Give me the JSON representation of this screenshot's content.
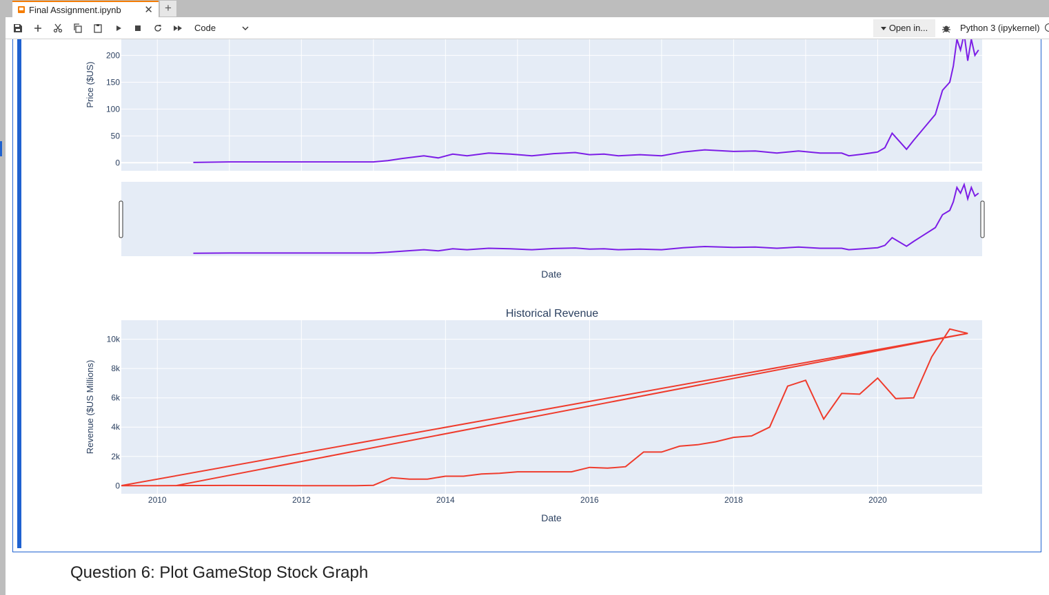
{
  "tab": {
    "title": "Final Assignment.ipynb",
    "close_glyph": "✕",
    "new_glyph": "+"
  },
  "toolbar": {
    "icons": [
      "save-icon",
      "add-cell-icon",
      "cut-icon",
      "copy-icon",
      "paste-icon",
      "run-icon",
      "stop-icon",
      "restart-icon",
      "run-all-icon"
    ],
    "cell_type": "Code",
    "open_in": "Open in...",
    "kernel": "Python 3 (ipykernel)"
  },
  "chart_price": {
    "ylabel": "Price ($US)",
    "yticks": [
      "0",
      "50",
      "100",
      "150",
      "200"
    ],
    "xlabel": "Date"
  },
  "chart_revenue": {
    "title": "Historical Revenue",
    "ylabel": "Revenue ($US Millions)",
    "yticks": [
      "0",
      "2k",
      "4k",
      "6k",
      "8k",
      "10k"
    ],
    "xticks": [
      "2010",
      "2012",
      "2014",
      "2016",
      "2018",
      "2020"
    ],
    "xlabel": "Date"
  },
  "chart_data": [
    {
      "type": "line",
      "ylabel": "Price ($US)",
      "xlabel": "Date",
      "color": "#7c1de6",
      "xlim": [
        2009.5,
        2021.45
      ],
      "ylim": [
        -15,
        230
      ],
      "x": [
        2010.5,
        2011.0,
        2012.0,
        2013.0,
        2013.2,
        2013.4,
        2013.7,
        2013.9,
        2014.1,
        2014.3,
        2014.6,
        2014.9,
        2015.2,
        2015.5,
        2015.8,
        2016.0,
        2016.2,
        2016.4,
        2016.7,
        2017.0,
        2017.3,
        2017.6,
        2018.0,
        2018.3,
        2018.6,
        2018.9,
        2019.2,
        2019.5,
        2019.6,
        2019.8,
        2020.0,
        2020.1,
        2020.2,
        2020.4,
        2020.5,
        2020.6,
        2020.8,
        2020.9,
        2021.0,
        2021.05,
        2021.1,
        2021.15,
        2021.2,
        2021.25,
        2021.3,
        2021.35,
        2021.4
      ],
      "y": [
        0.5,
        1.5,
        1.5,
        1.5,
        4,
        8,
        13,
        9,
        16,
        13,
        18,
        16,
        13,
        17,
        19,
        15,
        16,
        13,
        15,
        13,
        20,
        24,
        21,
        22,
        18,
        22,
        18,
        18,
        13,
        16,
        20,
        28,
        55,
        25,
        42,
        58,
        90,
        135,
        150,
        180,
        230,
        210,
        240,
        190,
        230,
        200,
        210
      ]
    },
    {
      "type": "line",
      "title": "Historical Revenue",
      "ylabel": "Revenue ($US Millions)",
      "xlabel": "Date",
      "color": "#ef3b2c",
      "xlim": [
        2009.5,
        2021.45
      ],
      "ylim": [
        -550,
        11300
      ],
      "x": [
        2010.25,
        2021.25,
        2021.0,
        2020.75,
        2020.5,
        2020.25,
        2020.0,
        2019.75,
        2019.5,
        2019.25,
        2019.0,
        2018.75,
        2018.5,
        2018.25,
        2018.0,
        2017.75,
        2017.5,
        2017.25,
        2017.0,
        2016.75,
        2016.5,
        2016.25,
        2016.0,
        2015.75,
        2015.5,
        2015.25,
        2015.0,
        2014.75,
        2014.5,
        2014.25,
        2014.0,
        2013.75,
        2013.5,
        2013.25,
        2013.0,
        2012.75,
        2012.5,
        2012.25,
        2012.0,
        2011.0,
        2010.0,
        2009.5,
        2021.25
      ],
      "y": [
        0,
        10400,
        10700,
        8800,
        6000,
        5950,
        7350,
        6250,
        6300,
        4550,
        7200,
        6800,
        4000,
        3400,
        3300,
        3000,
        2800,
        2700,
        2300,
        2300,
        1300,
        1200,
        1250,
        950,
        950,
        950,
        950,
        850,
        800,
        650,
        650,
        450,
        450,
        550,
        30,
        5,
        5,
        5,
        5,
        20,
        5,
        5,
        10400
      ]
    }
  ]
}
